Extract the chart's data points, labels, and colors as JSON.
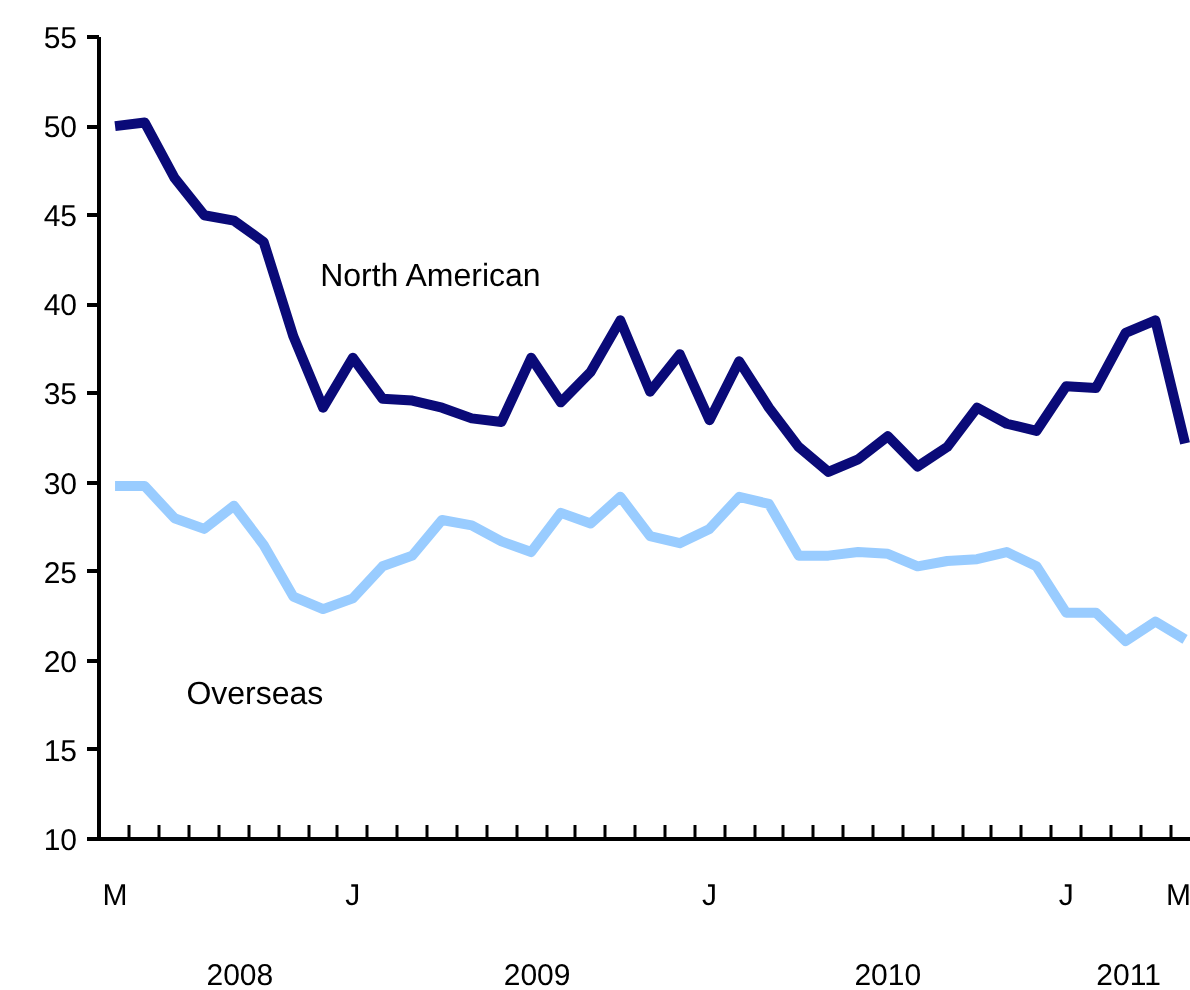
{
  "chart_data": {
    "type": "line",
    "categories": [
      "M",
      null,
      null,
      null,
      null,
      null,
      null,
      null,
      "J",
      null,
      null,
      null,
      null,
      null,
      null,
      null,
      null,
      null,
      null,
      null,
      "J",
      null,
      null,
      null,
      null,
      null,
      null,
      null,
      null,
      null,
      null,
      null,
      "J",
      null,
      null,
      null,
      "M"
    ],
    "series": [
      {
        "name": "North American",
        "color": "#0a0a78",
        "values": [
          50.0,
          50.2,
          47.1,
          45.0,
          44.7,
          43.5,
          38.2,
          34.2,
          37.0,
          34.7,
          34.6,
          34.2,
          33.6,
          33.4,
          37.0,
          34.5,
          36.2,
          39.1,
          35.1,
          37.2,
          33.5,
          36.8,
          34.2,
          32.0,
          30.6,
          31.3,
          32.6,
          30.9,
          32.0,
          34.2,
          33.3,
          32.9,
          35.4,
          35.3,
          38.4,
          39.1,
          32.2
        ]
      },
      {
        "name": "Overseas",
        "color": "#99ccff",
        "values": [
          29.8,
          29.8,
          28.0,
          27.4,
          28.7,
          26.5,
          23.6,
          22.9,
          23.5,
          25.3,
          25.9,
          27.9,
          27.6,
          26.7,
          26.1,
          28.3,
          27.7,
          29.2,
          27.0,
          26.6,
          27.4,
          29.2,
          28.8,
          25.9,
          25.9,
          26.1,
          26.0,
          25.3,
          25.6,
          25.7,
          26.1,
          25.3,
          22.7,
          22.7,
          21.1,
          22.2,
          21.2
        ]
      }
    ],
    "ylim": [
      10,
      55
    ],
    "yticks": [
      10,
      15,
      20,
      25,
      30,
      35,
      40,
      45,
      50,
      55
    ],
    "annotations": [
      "2008",
      "2009",
      "2010",
      "2011"
    ],
    "grid": false,
    "legend": false,
    "marker": "none",
    "line_style": "solid"
  }
}
